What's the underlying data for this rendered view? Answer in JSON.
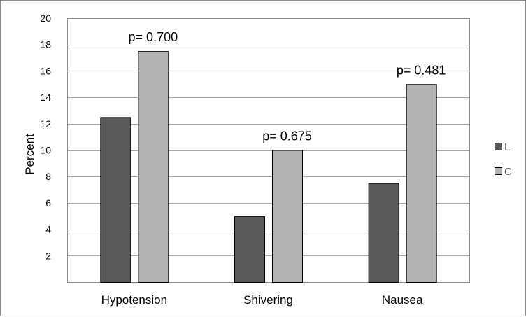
{
  "chart_data": {
    "type": "bar",
    "categories": [
      "Hypotension",
      "Shivering",
      "Nausea"
    ],
    "series": [
      {
        "name": "L",
        "values": [
          12.5,
          5,
          7.5
        ],
        "color": "#595959"
      },
      {
        "name": "C",
        "values": [
          17.5,
          10,
          15
        ],
        "color": "#b3b3b3"
      }
    ],
    "annotations": [
      "p= 0.700",
      "p= 0.675",
      "p= 0.481"
    ],
    "ylabel": "Percent",
    "xlabel": "",
    "ylim": [
      0,
      20
    ],
    "yticks": [
      2,
      4,
      6,
      8,
      10,
      12,
      14,
      16,
      18,
      20
    ],
    "grid": true,
    "legend_position": "right"
  }
}
